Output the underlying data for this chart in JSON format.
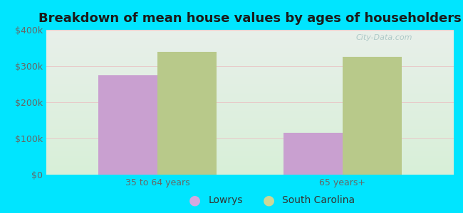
{
  "title": "Breakdown of mean house values by ages of householders",
  "categories": [
    "35 to 64 years",
    "65 years+"
  ],
  "series": {
    "Lowrys": [
      275000,
      115000
    ],
    "South Carolina": [
      340000,
      325000
    ]
  },
  "bar_colors": {
    "Lowrys": "#c9a0d0",
    "South Carolina": "#b8c98a"
  },
  "legend_marker_colors": {
    "Lowrys": "#d4a8e0",
    "South Carolina": "#ccd898"
  },
  "ylim": [
    0,
    400000
  ],
  "yticks": [
    0,
    100000,
    200000,
    300000,
    400000
  ],
  "ytick_labels": [
    "$0",
    "$100k",
    "$200k",
    "$300k",
    "$400k"
  ],
  "background_color": "#00e5ff",
  "plot_bg_top": "#e8efea",
  "plot_bg_bottom": "#d8f0d8",
  "title_fontsize": 13,
  "legend_fontsize": 10,
  "tick_fontsize": 9,
  "bar_width": 0.32,
  "watermark": "City-Data.com"
}
